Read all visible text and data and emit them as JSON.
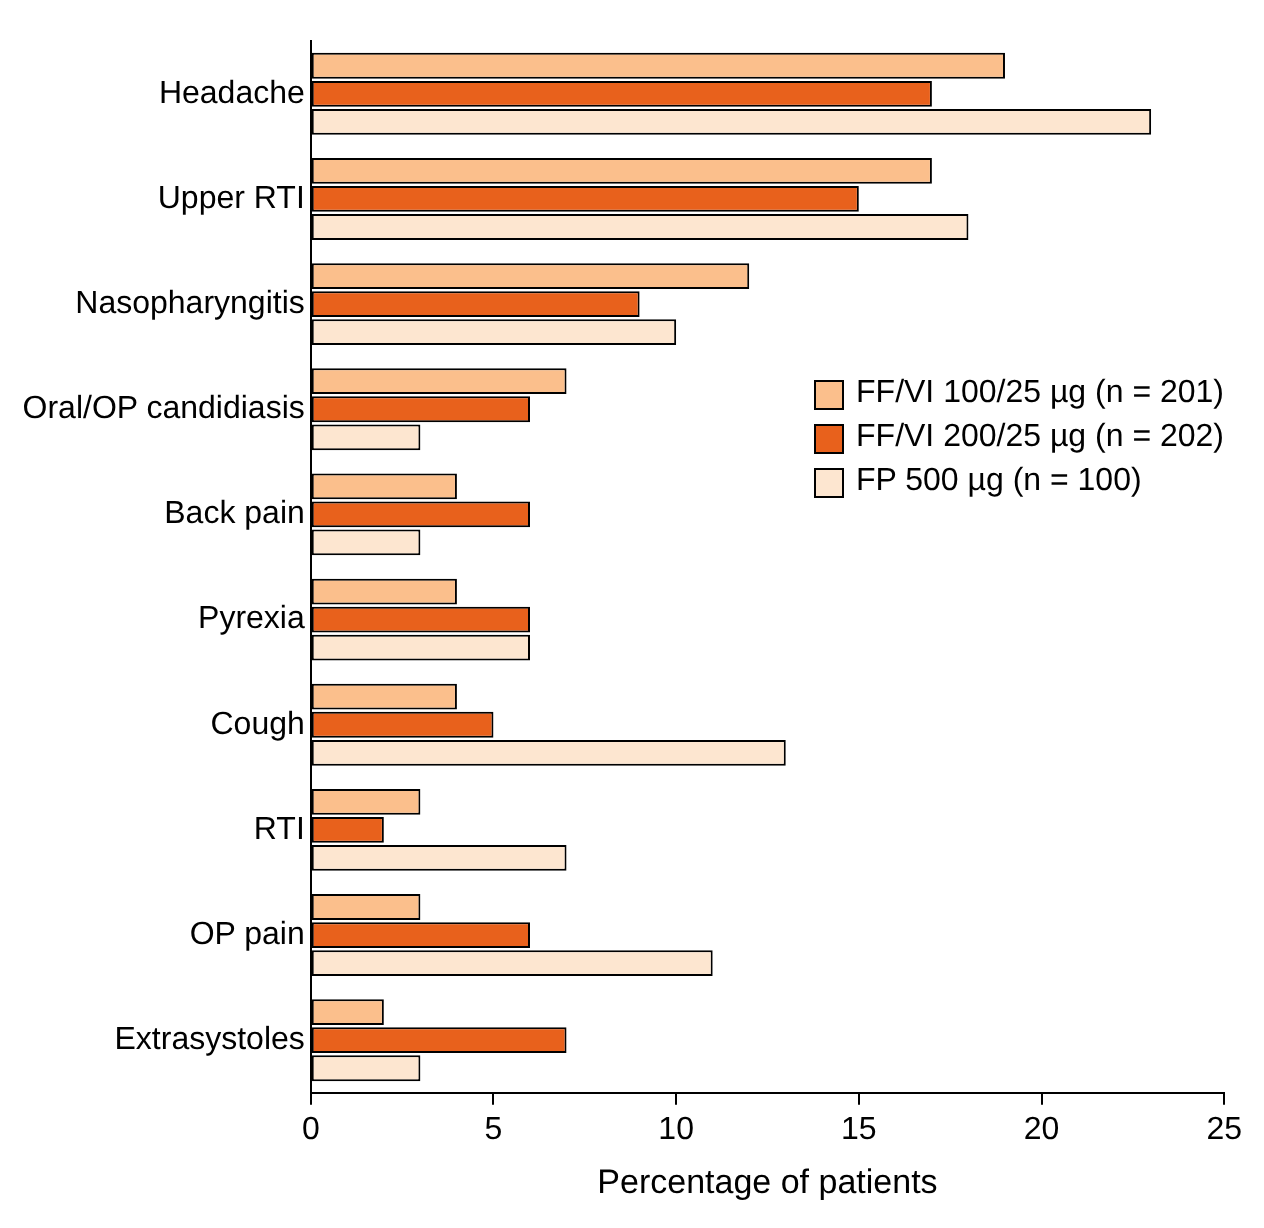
{
  "chart_data": {
    "type": "bar",
    "orientation": "horizontal",
    "xlabel": "Percentage of patients",
    "categories": [
      "Headache",
      "Upper RTI",
      "Nasopharyngitis",
      "Oral/OP candidiasis",
      "Back pain",
      "Pyrexia",
      "Cough",
      "RTI",
      "OP pain",
      "Extrasystoles"
    ],
    "series": [
      {
        "name": "FF/VI 100/25 µg (n = 201)",
        "color": "#fbbf8c",
        "values": [
          19,
          17,
          12,
          7,
          4,
          4,
          4,
          3,
          3,
          2
        ]
      },
      {
        "name": "FF/VI 200/25 µg (n = 202)",
        "color": "#e8611c",
        "values": [
          17,
          15,
          9,
          6,
          6,
          6,
          5,
          2,
          6,
          7
        ]
      },
      {
        "name": "FP 500 µg (n = 100)",
        "color": "#fde6d0",
        "values": [
          23,
          18,
          10,
          3,
          3,
          6,
          13,
          7,
          11,
          3
        ]
      }
    ],
    "xlim": [
      0,
      25
    ],
    "xticks": [
      0,
      5,
      10,
      15,
      20,
      25
    ],
    "grid": false,
    "legend": "right"
  }
}
